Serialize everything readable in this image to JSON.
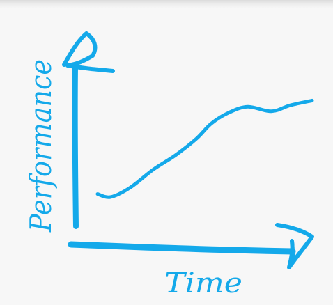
{
  "theme": {
    "ink_color": "#14a9ea",
    "background": "#f7f7f7"
  },
  "chart_data": {
    "type": "line",
    "title": "",
    "xlabel": "Time",
    "ylabel": "Performance",
    "grid": false,
    "legend": "none",
    "axis_style": "hand-drawn arrows, no ticks",
    "xlim": [
      0,
      10
    ],
    "ylim": [
      0,
      10
    ],
    "series": [
      {
        "x": [
          0,
          0.6,
          1.5,
          2.6,
          3.6,
          4.6,
          5.3,
          6.1,
          7.0,
          8.1,
          9.0,
          10.0
        ],
        "y": [
          1.2,
          1.0,
          1.6,
          2.8,
          3.7,
          4.8,
          5.8,
          6.5,
          6.9,
          6.6,
          7.0,
          7.3
        ]
      }
    ]
  }
}
